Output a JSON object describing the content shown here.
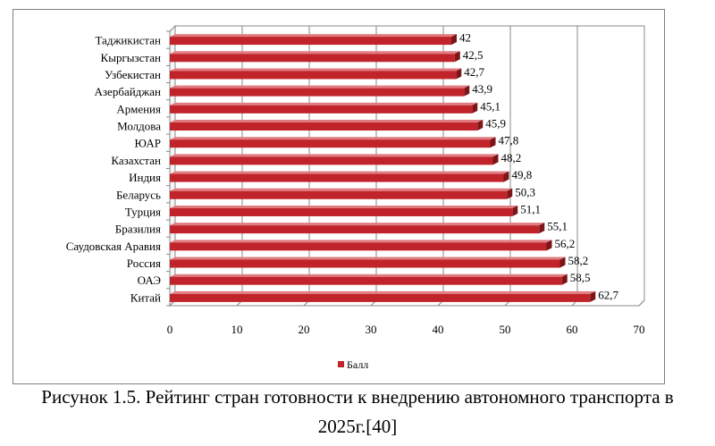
{
  "chart_data": {
    "type": "bar",
    "orientation": "horizontal",
    "categories": [
      "Таджикистан",
      "Кыргызстан",
      "Узбекистан",
      "Азербайджан",
      "Армения",
      "Молдова",
      "ЮАР",
      "Казахстан",
      "Индия",
      "Беларусь",
      "Турция",
      "Бразилия",
      "Саудовская Аравия",
      "Россия",
      "ОАЭ",
      "Китай"
    ],
    "series": [
      {
        "name": "Балл",
        "values": [
          42,
          42.5,
          42.7,
          43.9,
          45.1,
          45.9,
          47.8,
          48.2,
          49.8,
          50.3,
          51.1,
          55.1,
          56.2,
          58.2,
          58.5,
          62.7
        ],
        "color": "#c0232a"
      }
    ],
    "value_labels": [
      "42",
      "42,5",
      "42,7",
      "43,9",
      "45,1",
      "45,9",
      "47,8",
      "48,2",
      "49,8",
      "50,3",
      "51,1",
      "55,1",
      "56,2",
      "58,2",
      "58,5",
      "62,7"
    ],
    "x_ticks": [
      "0",
      "10",
      "20",
      "30",
      "40",
      "50",
      "60",
      "70"
    ],
    "xlim": [
      0,
      70
    ],
    "grid": "vertical",
    "legend_position": "bottom",
    "legend_label": "Балл"
  },
  "caption": {
    "line1": "Рисунок 1.5. Рейтинг стран готовности к внедрению автономного транспорта в",
    "line2": "2025г.[40]"
  }
}
